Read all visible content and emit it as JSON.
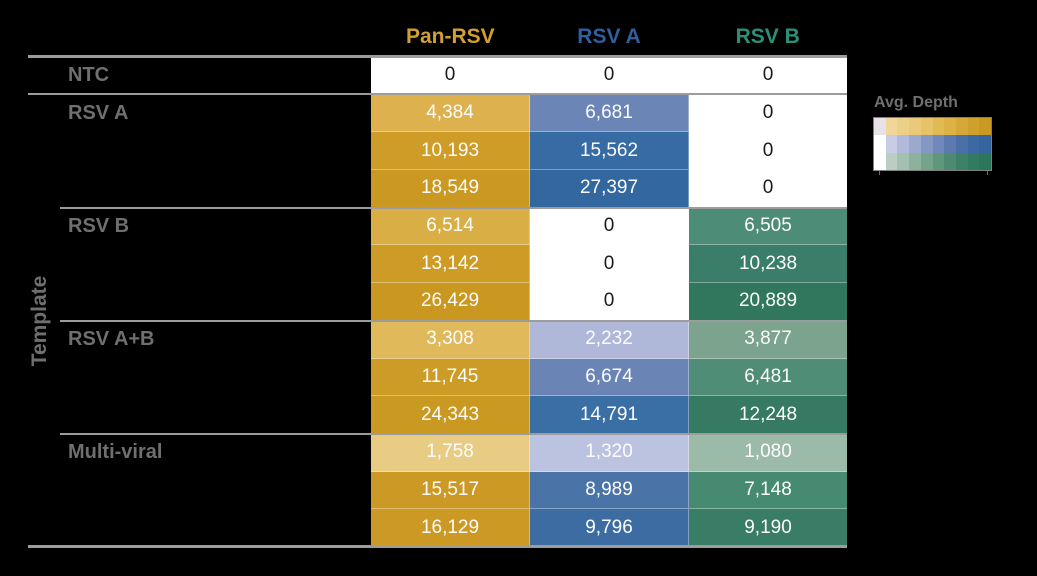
{
  "colors": {
    "background": "#000000",
    "muted_text": "#6F6F6F",
    "separator_line": "#9C9C9C",
    "value_text_on_color": "#FCFCFC",
    "value_text_on_white": "#1A1A1A"
  },
  "header": {
    "columns": [
      {
        "label": "Pan-RSV",
        "color": "#D2A02C"
      },
      {
        "label": "RSV A",
        "color": "#2F5F9E"
      },
      {
        "label": "RSV B",
        "color": "#2B9077"
      }
    ]
  },
  "y_axis_label": "Template",
  "legend": {
    "title": "Avg. Depth",
    "bars": [
      {
        "name": "pan-rsv-colorbar",
        "steps": [
          "#E7E1E8",
          "#F0D69B",
          "#EDD088",
          "#EACA78",
          "#E7C267",
          "#E2BA54",
          "#DCB146",
          "#D5A837",
          "#CFA02C",
          "#C99921"
        ]
      },
      {
        "name": "rsv-a-colorbar",
        "steps": [
          "#FFFFFF",
          "#C8CCE5",
          "#B1BADA",
          "#9BA9CF",
          "#8497C3",
          "#7188BA",
          "#5C7AB0",
          "#4A70A7",
          "#3C69A2",
          "#34659E"
        ]
      },
      {
        "name": "rsv-b-colorbar",
        "steps": [
          "#FFFFFF",
          "#BACFC2",
          "#A3C0B0",
          "#8CB29E",
          "#75A48C",
          "#5F977D",
          "#4C8B71",
          "#3D8268",
          "#337B60",
          "#2C765B"
        ]
      }
    ]
  },
  "groups": [
    {
      "label": "NTC",
      "rows": [
        {
          "cells": [
            {
              "text": "0",
              "bg": "#FFFFFF",
              "fg": "#1A1A1A"
            },
            {
              "text": "0",
              "bg": "#FFFFFF",
              "fg": "#1A1A1A"
            },
            {
              "text": "0",
              "bg": "#FFFFFF",
              "fg": "#1A1A1A"
            }
          ]
        }
      ]
    },
    {
      "label": "RSV A",
      "rows": [
        {
          "cells": [
            {
              "text": "4,384",
              "bg": "#DDB24E",
              "fg": "#FCFCFC"
            },
            {
              "text": "6,681",
              "bg": "#6A85B6",
              "fg": "#FCFCFC"
            },
            {
              "text": "0",
              "bg": "#FFFFFF",
              "fg": "#1A1A1A"
            }
          ]
        },
        {
          "cells": [
            {
              "text": "10,193",
              "bg": "#CE9C27",
              "fg": "#FCFCFC"
            },
            {
              "text": "15,562",
              "bg": "#376BA3",
              "fg": "#FCFCFC"
            },
            {
              "text": "0",
              "bg": "#FFFFFF",
              "fg": "#1A1A1A"
            }
          ]
        },
        {
          "cells": [
            {
              "text": "18,549",
              "bg": "#CB9922",
              "fg": "#FCFCFC"
            },
            {
              "text": "27,397",
              "bg": "#33679F",
              "fg": "#FCFCFC"
            },
            {
              "text": "0",
              "bg": "#FFFFFF",
              "fg": "#1A1A1A"
            }
          ]
        }
      ]
    },
    {
      "label": "RSV B",
      "rows": [
        {
          "cells": [
            {
              "text": "6,514",
              "bg": "#D9AE45",
              "fg": "#FCFCFC"
            },
            {
              "text": "0",
              "bg": "#FFFFFF",
              "fg": "#1A1A1A"
            },
            {
              "text": "6,505",
              "bg": "#4D8C76",
              "fg": "#FCFCFC"
            }
          ]
        },
        {
          "cells": [
            {
              "text": "13,142",
              "bg": "#CD9B26",
              "fg": "#FCFCFC"
            },
            {
              "text": "0",
              "bg": "#FFFFFF",
              "fg": "#1A1A1A"
            },
            {
              "text": "10,238",
              "bg": "#3A7E69",
              "fg": "#FCFCFC"
            }
          ]
        },
        {
          "cells": [
            {
              "text": "26,429",
              "bg": "#CA9820",
              "fg": "#FCFCFC"
            },
            {
              "text": "0",
              "bg": "#FFFFFF",
              "fg": "#1A1A1A"
            },
            {
              "text": "20,889",
              "bg": "#31775E",
              "fg": "#FCFCFC"
            }
          ]
        }
      ]
    },
    {
      "label": "RSV A+B",
      "rows": [
        {
          "cells": [
            {
              "text": "3,308",
              "bg": "#DFB95A",
              "fg": "#FCFCFC"
            },
            {
              "text": "2,232",
              "bg": "#AFB8D9",
              "fg": "#FCFCFC"
            },
            {
              "text": "3,877",
              "bg": "#7BA38D",
              "fg": "#FCFCFC"
            }
          ]
        },
        {
          "cells": [
            {
              "text": "11,745",
              "bg": "#CD9C27",
              "fg": "#FCFCFC"
            },
            {
              "text": "6,674",
              "bg": "#6A85B5",
              "fg": "#FCFCFC"
            },
            {
              "text": "6,481",
              "bg": "#4F8D77",
              "fg": "#FCFCFC"
            }
          ]
        },
        {
          "cells": [
            {
              "text": "24,343",
              "bg": "#CA9921",
              "fg": "#FCFCFC"
            },
            {
              "text": "14,791",
              "bg": "#3A6FA5",
              "fg": "#FCFCFC"
            },
            {
              "text": "12,248",
              "bg": "#377A64",
              "fg": "#FCFCFC"
            }
          ]
        }
      ]
    },
    {
      "label": "Multi-viral",
      "rows": [
        {
          "cells": [
            {
              "text": "1,758",
              "bg": "#E9CC83",
              "fg": "#FCFCFC"
            },
            {
              "text": "1,320",
              "bg": "#BCC3E0",
              "fg": "#FCFCFC"
            },
            {
              "text": "1,080",
              "bg": "#9CBAA8",
              "fg": "#FCFCFC"
            }
          ]
        },
        {
          "cells": [
            {
              "text": "15,517",
              "bg": "#CC9A24",
              "fg": "#FCFCFC"
            },
            {
              "text": "8,989",
              "bg": "#4A74A8",
              "fg": "#FCFCFC"
            },
            {
              "text": "7,148",
              "bg": "#478A72",
              "fg": "#FCFCFC"
            }
          ]
        },
        {
          "cells": [
            {
              "text": "16,129",
              "bg": "#CC9A24",
              "fg": "#FCFCFC"
            },
            {
              "text": "9,796",
              "bg": "#3D6CA2",
              "fg": "#FCFCFC"
            },
            {
              "text": "9,190",
              "bg": "#3A7D67",
              "fg": "#FCFCFC"
            }
          ]
        }
      ]
    }
  ],
  "chart_data": {
    "type": "heatmap",
    "title": "",
    "columns": [
      "Pan-RSV",
      "RSV A",
      "RSV B"
    ],
    "ylabel": "Template",
    "legend_title": "Avg. Depth",
    "row_groups": [
      {
        "template": "NTC",
        "rows": [
          [
            0,
            0,
            0
          ]
        ]
      },
      {
        "template": "RSV A",
        "rows": [
          [
            4384,
            6681,
            0
          ],
          [
            10193,
            15562,
            0
          ],
          [
            18549,
            27397,
            0
          ]
        ]
      },
      {
        "template": "RSV B",
        "rows": [
          [
            6514,
            0,
            6505
          ],
          [
            13142,
            0,
            10238
          ],
          [
            26429,
            0,
            20889
          ]
        ]
      },
      {
        "template": "RSV A+B",
        "rows": [
          [
            3308,
            2232,
            3877
          ],
          [
            11745,
            6674,
            6481
          ],
          [
            24343,
            14791,
            12248
          ]
        ]
      },
      {
        "template": "Multi-viral",
        "rows": [
          [
            1758,
            1320,
            1080
          ],
          [
            15517,
            8989,
            7148
          ],
          [
            16129,
            9796,
            9190
          ]
        ]
      }
    ],
    "column_colormaps": [
      "gold",
      "blue",
      "green"
    ],
    "legend_position": "right"
  }
}
